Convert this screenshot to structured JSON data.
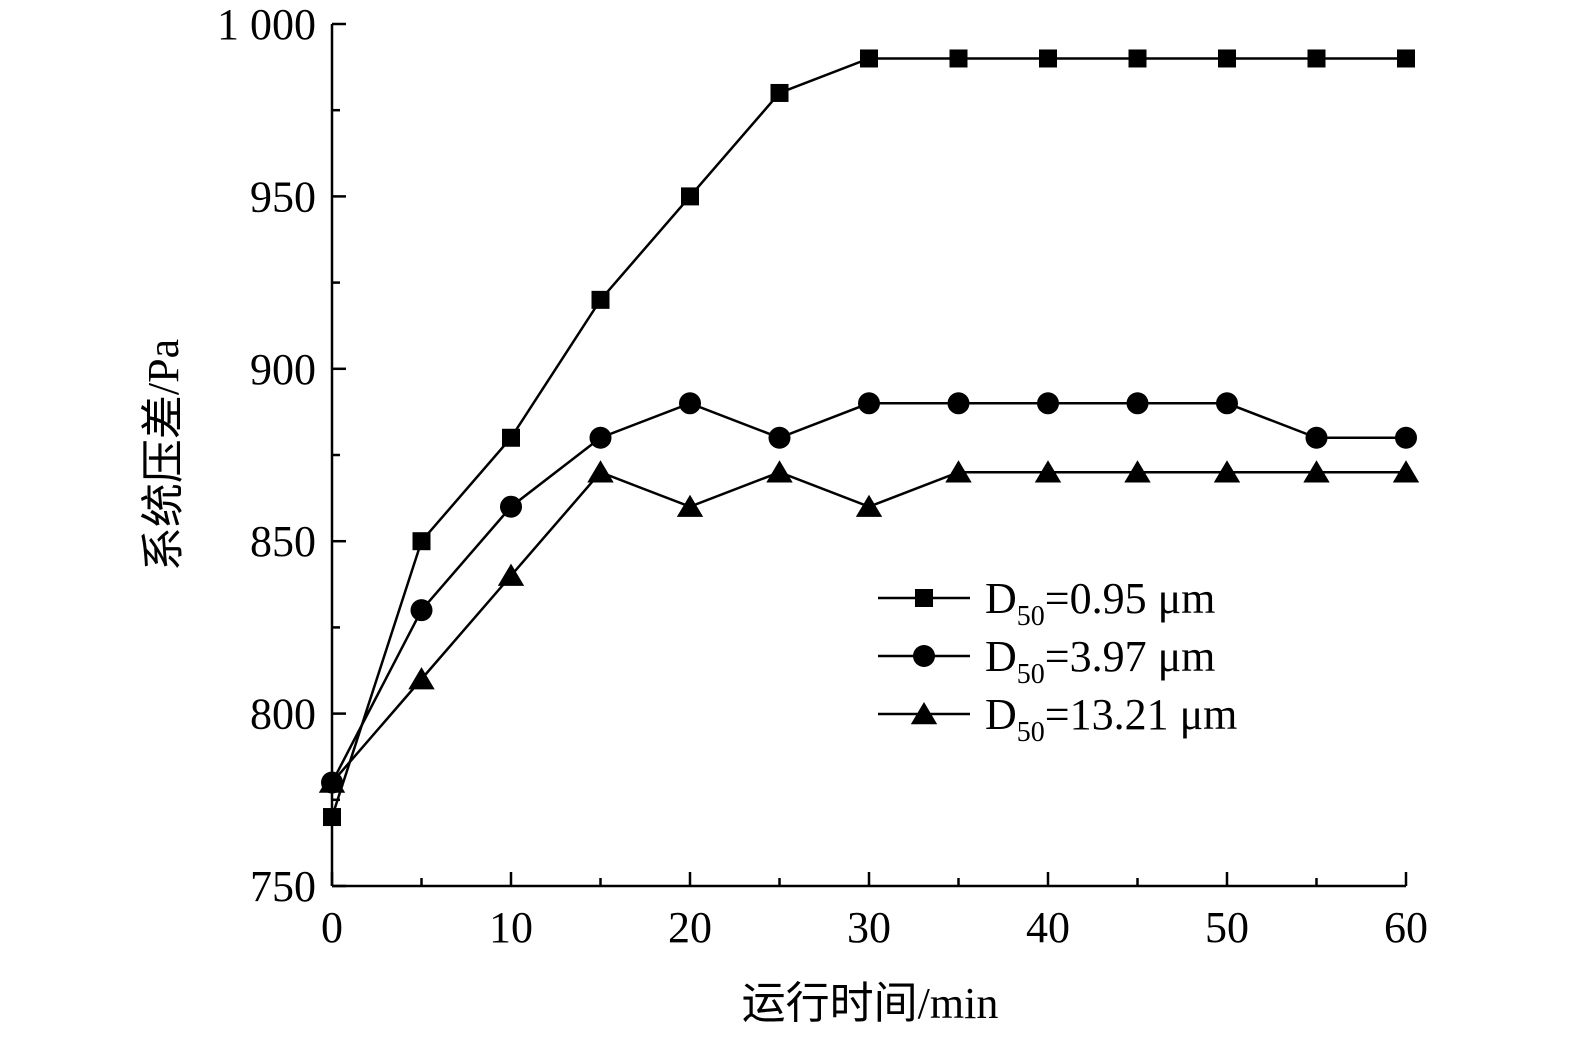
{
  "chart_data": {
    "type": "line",
    "xlabel": "运行时间/min",
    "ylabel": "系统压差/Pa",
    "xlim": [
      0,
      60
    ],
    "ylim": [
      750,
      1000
    ],
    "xticks": [
      0,
      10,
      20,
      30,
      40,
      50,
      60
    ],
    "xtick_labels": [
      "0",
      "10",
      "20",
      "30",
      "40",
      "50",
      "60"
    ],
    "yticks": [
      750,
      800,
      850,
      900,
      950,
      1000
    ],
    "ytick_labels": [
      "750",
      "800",
      "850",
      "900",
      "950",
      "1 000"
    ],
    "x": [
      0,
      5,
      10,
      15,
      20,
      25,
      30,
      35,
      40,
      45,
      50,
      55,
      60
    ],
    "grid": false,
    "legend_position": "right-middle",
    "series": [
      {
        "name_prefix": "D",
        "name_sub": "50",
        "name_suffix": "=0.95 μm",
        "marker": "square",
        "values": [
          770,
          850,
          880,
          920,
          950,
          980,
          990,
          990,
          990,
          990,
          990,
          990,
          990
        ]
      },
      {
        "name_prefix": "D",
        "name_sub": "50",
        "name_suffix": "=3.97 μm",
        "marker": "circle",
        "values": [
          780,
          830,
          860,
          880,
          890,
          880,
          890,
          890,
          890,
          890,
          890,
          880,
          880
        ]
      },
      {
        "name_prefix": "D",
        "name_sub": "50",
        "name_suffix": "=13.21 μm",
        "marker": "triangle",
        "values": [
          780,
          810,
          840,
          870,
          860,
          870,
          860,
          870,
          870,
          870,
          870,
          870,
          870
        ]
      }
    ]
  }
}
